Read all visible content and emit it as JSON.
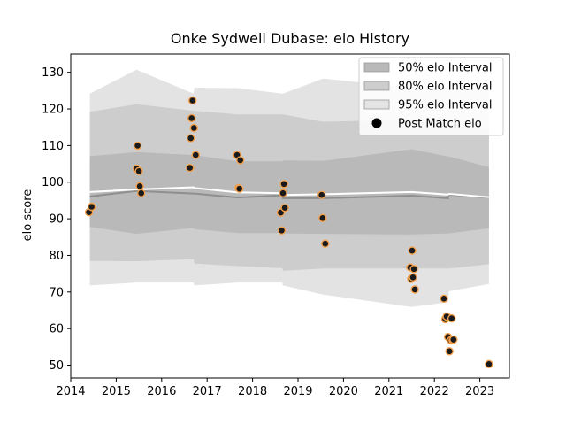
{
  "chart_data": {
    "type": "line",
    "title": "Onke Sydwell Dubase: elo History",
    "xlabel": "",
    "ylabel": "elo score",
    "xlim": [
      2014.0,
      2023.65
    ],
    "ylim": [
      46.5,
      135.0
    ],
    "x_ticks": [
      2014,
      2015,
      2016,
      2017,
      2018,
      2019,
      2020,
      2021,
      2022,
      2023
    ],
    "y_ticks": [
      50,
      60,
      70,
      80,
      90,
      100,
      110,
      120,
      130
    ],
    "grid": false,
    "legend_position": "top-right",
    "legend": [
      {
        "label": "50% elo Interval",
        "kind": "band50"
      },
      {
        "label": "80% elo Interval",
        "kind": "band80"
      },
      {
        "label": "95% elo Interval",
        "kind": "band95"
      },
      {
        "label": "Post Match elo",
        "kind": "marker"
      }
    ],
    "colors": {
      "band95": "#e3e3e3",
      "band80": "#cdcdcd",
      "band50": "#b9b9b9",
      "median_line": "#8f8f8f",
      "mean_line": "#ffffff",
      "marker_face": "#1a1a1a",
      "marker_edge": "#f3a04d"
    },
    "bands": {
      "x": [
        2014.42,
        2015.45,
        2016.7,
        2016.72,
        2017.67,
        2018.65,
        2018.67,
        2019.55,
        2021.5,
        2022.3,
        2022.32,
        2023.2
      ],
      "p95_upper": [
        124.2,
        130.7,
        124.2,
        125.8,
        125.7,
        124.2,
        124.2,
        128.3,
        125.8,
        125.8,
        125.8,
        126.2
      ],
      "p95_lower": [
        71.8,
        72.6,
        72.6,
        71.8,
        72.6,
        72.6,
        71.8,
        69.3,
        65.9,
        67.2,
        70.2,
        72.2
      ],
      "p80_upper": [
        119.2,
        121.3,
        119.5,
        119.5,
        118.5,
        118.5,
        118.5,
        116.5,
        117.0,
        116.0,
        116.5,
        114.5
      ],
      "p80_lower": [
        78.5,
        78.4,
        79.0,
        77.8,
        77.1,
        76.5,
        75.8,
        76.4,
        76.4,
        76.4,
        76.4,
        77.6
      ],
      "p50_upper": [
        107.1,
        108.2,
        107.4,
        107.4,
        105.7,
        105.7,
        105.9,
        105.8,
        109.0,
        107.0,
        107.0,
        104.1
      ],
      "p50_lower": [
        87.8,
        85.9,
        87.5,
        87.2,
        86.1,
        86.1,
        86.0,
        85.9,
        85.7,
        86.0,
        86.0,
        87.4
      ],
      "median": [
        96.1,
        97.6,
        96.9,
        96.9,
        95.8,
        96.4,
        95.6,
        95.6,
        96.3,
        95.6,
        96.6,
        95.8
      ],
      "mean": [
        97.3,
        98.0,
        98.6,
        98.4,
        97.2,
        97.0,
        96.5,
        96.7,
        97.3,
        96.6,
        96.8,
        95.9
      ]
    },
    "series": [
      {
        "name": "Post Match elo",
        "x": [
          2014.4,
          2014.46,
          2015.45,
          2015.47,
          2015.5,
          2015.52,
          2015.55,
          2016.62,
          2016.64,
          2016.66,
          2016.68,
          2016.71,
          2016.75,
          2017.66,
          2017.69,
          2017.71,
          2017.73,
          2018.62,
          2018.64,
          2018.67,
          2018.69,
          2018.71,
          2019.52,
          2019.54,
          2019.6,
          2021.47,
          2021.49,
          2021.51,
          2021.53,
          2021.55,
          2021.57,
          2022.21,
          2022.24,
          2022.27,
          2022.3,
          2022.33,
          2022.36,
          2022.38,
          2022.4,
          2022.42,
          2023.2
        ],
        "y": [
          91.8,
          93.3,
          103.7,
          110.0,
          103.0,
          98.9,
          97.0,
          103.9,
          112.0,
          117.5,
          122.3,
          114.8,
          107.4,
          107.4,
          98.4,
          98.2,
          106.0,
          91.7,
          86.8,
          97.0,
          99.5,
          93.0,
          96.5,
          90.2,
          83.2,
          76.7,
          73.6,
          81.3,
          74.0,
          76.3,
          70.7,
          68.2,
          62.6,
          63.3,
          57.7,
          53.8,
          56.8,
          62.8,
          56.8,
          57.0,
          50.3
        ]
      }
    ]
  }
}
